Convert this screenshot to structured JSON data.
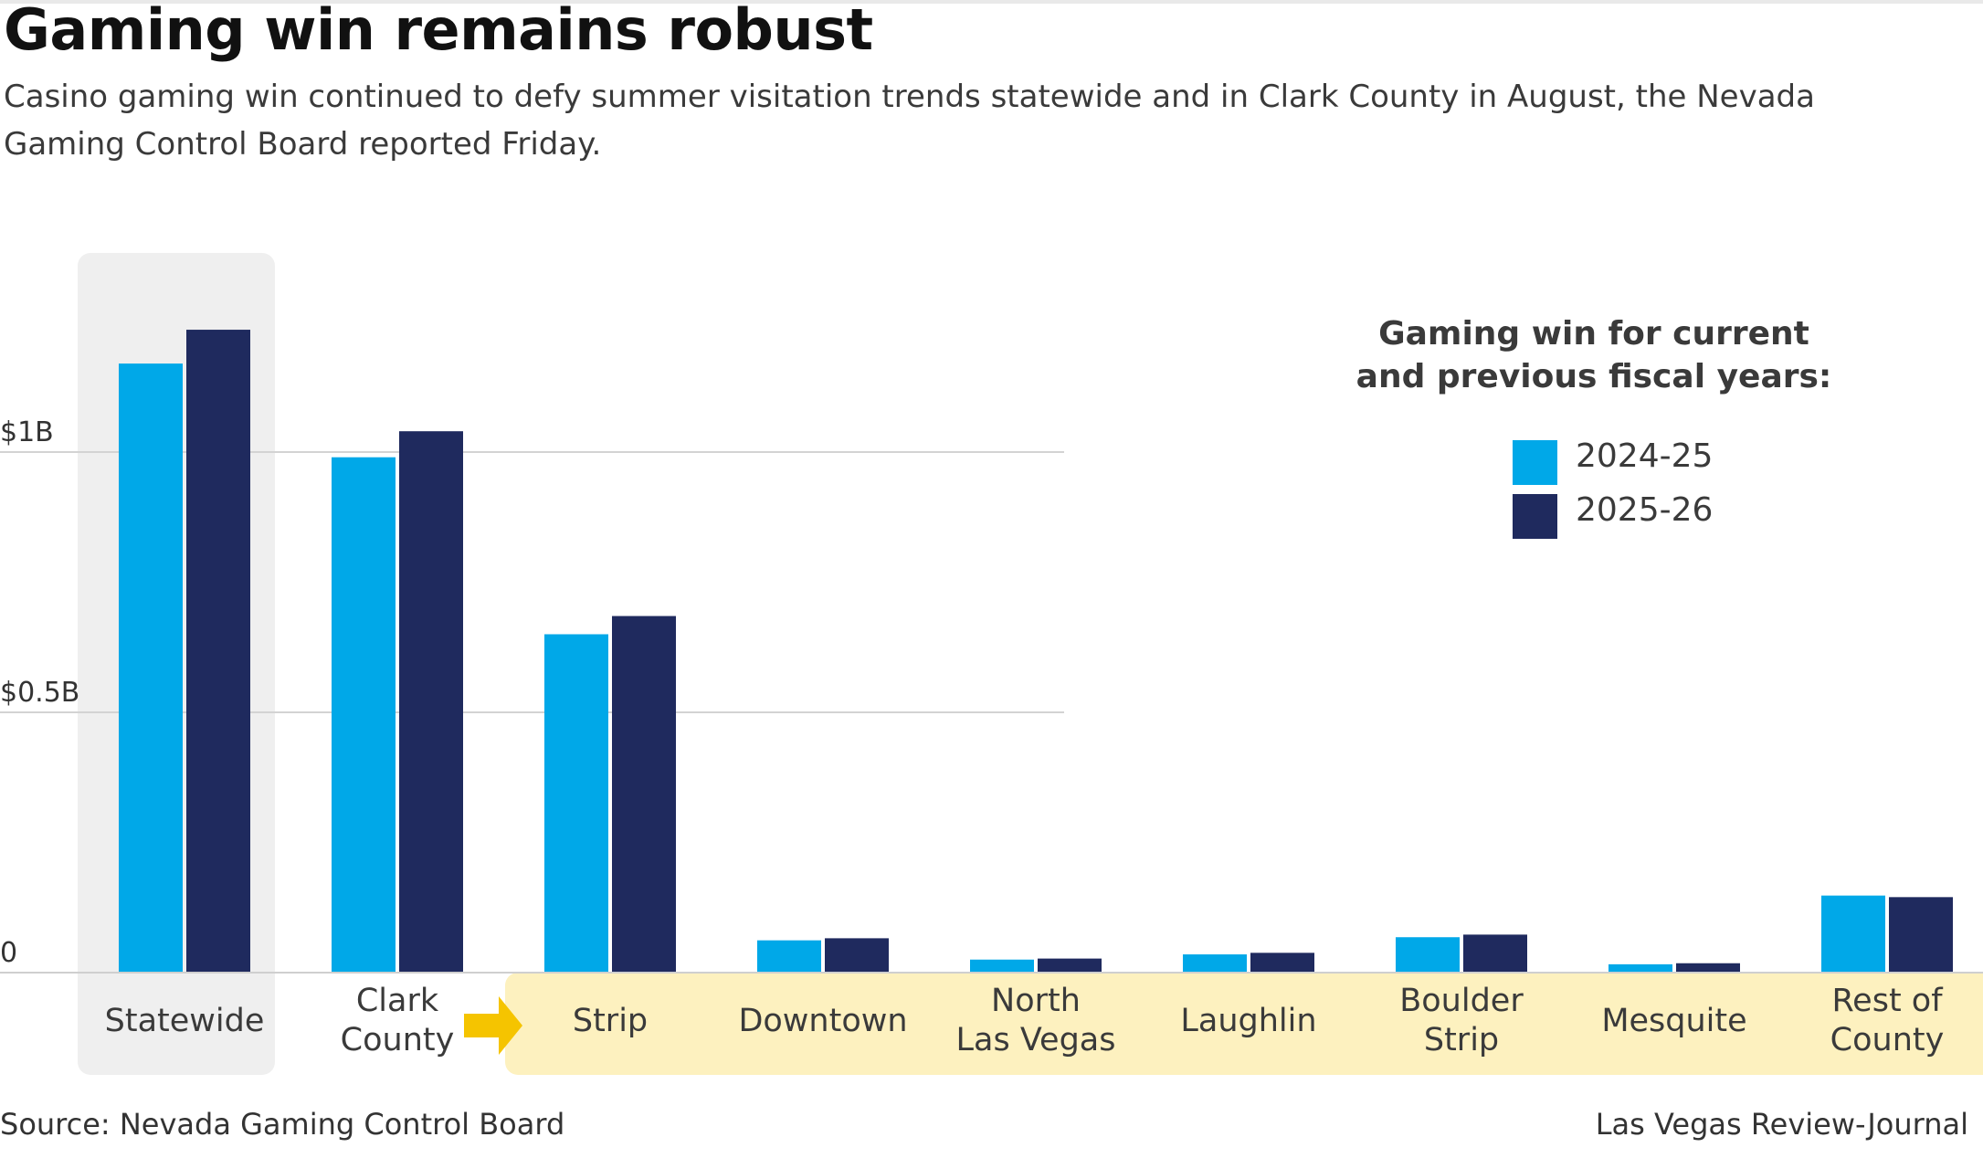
{
  "title": "Gaming win remains robust",
  "subtitle": "Casino gaming win continued to defy summer visitation trends statewide and in Clark County in August, the Nevada Gaming Control Board reported Friday.",
  "source": "Source: Nevada Gaming Control Board",
  "credit": "Las Vegas Review-Journal",
  "colors": {
    "series_2024": "#00a8e8",
    "series_2025": "#1f2a5e",
    "highlight_gray": "#efefef",
    "highlight_yellow": "#fdf1bf",
    "arrow": "#f5c400",
    "grid": "#d3d3d3"
  },
  "icons": {
    "arrow": "right-arrow-icon"
  },
  "chart_data": {
    "type": "bar",
    "legend_title": "Gaming win for current and previous fiscal years:",
    "legend_position": "top-right",
    "categories": [
      "Statewide",
      "Clark County",
      "Strip",
      "Downtown",
      "North Las Vegas",
      "Laughlin",
      "Boulder Strip",
      "Mesquite",
      "Rest of County"
    ],
    "category_lines": [
      [
        "Statewide"
      ],
      [
        "Clark",
        "County"
      ],
      [
        "Strip"
      ],
      [
        "Downtown"
      ],
      [
        "North",
        "Las Vegas"
      ],
      [
        "Laughlin"
      ],
      [
        "Boulder",
        "Strip"
      ],
      [
        "Mesquite"
      ],
      [
        "Rest of",
        "County"
      ]
    ],
    "series": [
      {
        "name": "2024-25",
        "values": [
          1.17,
          0.99,
          0.65,
          0.062,
          0.025,
          0.035,
          0.068,
          0.016,
          0.148
        ]
      },
      {
        "name": "2025-26",
        "values": [
          1.235,
          1.04,
          0.685,
          0.066,
          0.027,
          0.038,
          0.073,
          0.018,
          0.145
        ]
      }
    ],
    "yticks": [
      0,
      0.5,
      1
    ],
    "ytick_labels": [
      "0",
      "$0.5B",
      "$1B"
    ],
    "ylim": [
      0,
      1.3
    ],
    "grid": true,
    "highlight_gray_categories": [
      "Statewide"
    ],
    "highlight_yellow_categories": [
      "Strip",
      "Downtown",
      "North Las Vegas",
      "Laughlin",
      "Boulder Strip",
      "Mesquite",
      "Rest of County"
    ]
  }
}
